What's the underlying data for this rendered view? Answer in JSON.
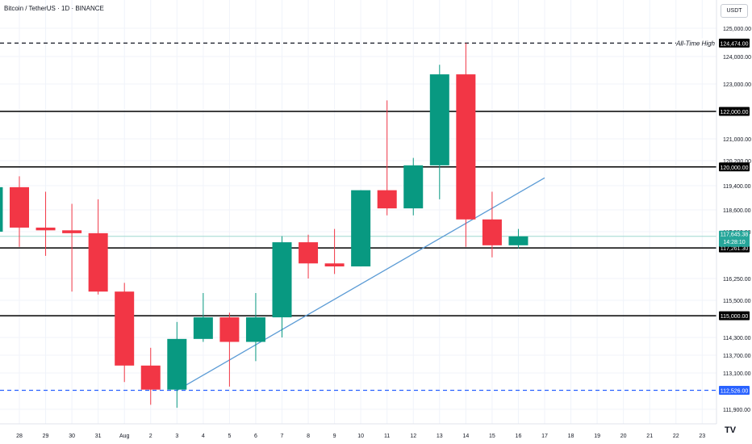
{
  "title": "Bitcoin / TetherUS · 1D · BINANCE",
  "currency_button": "USDT",
  "chart_data": {
    "type": "candlestick",
    "x_tick_labels": [
      "28",
      "29",
      "30",
      "31",
      "Aug",
      "2",
      "3",
      "4",
      "5",
      "6",
      "7",
      "8",
      "9",
      "10",
      "11",
      "12",
      "13",
      "14",
      "15",
      "16",
      "17",
      "18",
      "19",
      "20",
      "21",
      "22",
      "23"
    ],
    "y_tick_labels": [
      "125,000.00",
      "124,000.00",
      "123,000.00",
      "121,000.00",
      "120,200.00",
      "119,400.00",
      "118,600.00",
      "117,800.00",
      "116,250.00",
      "115,500.00",
      "114,300.00",
      "113,700.00",
      "113,100.00",
      "111,900.00"
    ],
    "y_tick_values": [
      125000,
      124000,
      123000,
      121000,
      120200,
      119400,
      118600,
      117800,
      116250,
      115500,
      114300,
      113700,
      113100,
      111900
    ],
    "candles": [
      {
        "x": "27",
        "open": 117800,
        "high": 119400,
        "low": 117400,
        "close": 119350
      },
      {
        "x": "28",
        "open": 119350,
        "high": 119700,
        "low": 117300,
        "close": 117950
      },
      {
        "x": "29",
        "open": 117950,
        "high": 119200,
        "low": 117000,
        "close": 117850
      },
      {
        "x": "30",
        "open": 117850,
        "high": 118800,
        "low": 115800,
        "close": 117750
      },
      {
        "x": "31",
        "open": 117750,
        "high": 118950,
        "low": 115700,
        "close": 115800
      },
      {
        "x": "Aug",
        "open": 115800,
        "high": 116100,
        "low": 112800,
        "close": 113350
      },
      {
        "x": "2",
        "open": 113350,
        "high": 113950,
        "low": 112050,
        "close": 112550
      },
      {
        "x": "3",
        "open": 112550,
        "high": 114800,
        "low": 111950,
        "close": 114250
      },
      {
        "x": "4",
        "open": 114250,
        "high": 115750,
        "low": 114150,
        "close": 114950
      },
      {
        "x": "5",
        "open": 114950,
        "high": 115100,
        "low": 112650,
        "close": 114150
      },
      {
        "x": "6",
        "open": 114150,
        "high": 115750,
        "low": 113500,
        "close": 114950
      },
      {
        "x": "7",
        "open": 114950,
        "high": 117650,
        "low": 114300,
        "close": 117450
      },
      {
        "x": "8",
        "open": 117450,
        "high": 117700,
        "low": 116250,
        "close": 116750
      },
      {
        "x": "9",
        "open": 116750,
        "high": 117900,
        "low": 116400,
        "close": 116650
      },
      {
        "x": "10",
        "open": 116650,
        "high": 119250,
        "low": 116650,
        "close": 119250
      },
      {
        "x": "11",
        "open": 119250,
        "high": 122400,
        "low": 118400,
        "close": 118650
      },
      {
        "x": "12",
        "open": 118650,
        "high": 120300,
        "low": 118400,
        "close": 120050
      },
      {
        "x": "13",
        "open": 120050,
        "high": 123700,
        "low": 118950,
        "close": 123350
      },
      {
        "x": "14",
        "open": 123350,
        "high": 124474,
        "low": 117300,
        "close": 118250
      },
      {
        "x": "15",
        "open": 118250,
        "high": 119200,
        "low": 116950,
        "close": 117350
      },
      {
        "x": "16",
        "open": 117350,
        "high": 117900,
        "low": 117250,
        "close": 117645.38
      }
    ],
    "horizontal_levels": [
      {
        "value": 124474,
        "label": "124,474.00",
        "style": "dashed",
        "color": "#131722",
        "annotation": "All-Time High"
      },
      {
        "value": 122000,
        "label": "122,000.00",
        "style": "solid",
        "color": "#000000"
      },
      {
        "value": 120000,
        "label": "120,000.00",
        "style": "solid",
        "color": "#000000"
      },
      {
        "value": 117261.3,
        "label": "117,261.30",
        "style": "solid",
        "color": "#000000"
      },
      {
        "value": 115000,
        "label": "115,000.00",
        "style": "solid",
        "color": "#000000"
      },
      {
        "value": 112526,
        "label": "112,526.00",
        "style": "dashed",
        "color": "#2962ff"
      }
    ],
    "trendline": {
      "from": {
        "x": "3",
        "y": 112526
      },
      "to": {
        "x": "17",
        "y": 119650
      },
      "color": "#5b9bd5"
    },
    "current_price": {
      "value": 117645.38,
      "label": "117,645.38",
      "countdown": "14:28:10",
      "color": "#26a69a"
    },
    "colors": {
      "up": "#089981",
      "down": "#f23645",
      "grid": "#f0f3fa",
      "axis_text": "#131722"
    },
    "grid": true
  },
  "watermark": "TV"
}
